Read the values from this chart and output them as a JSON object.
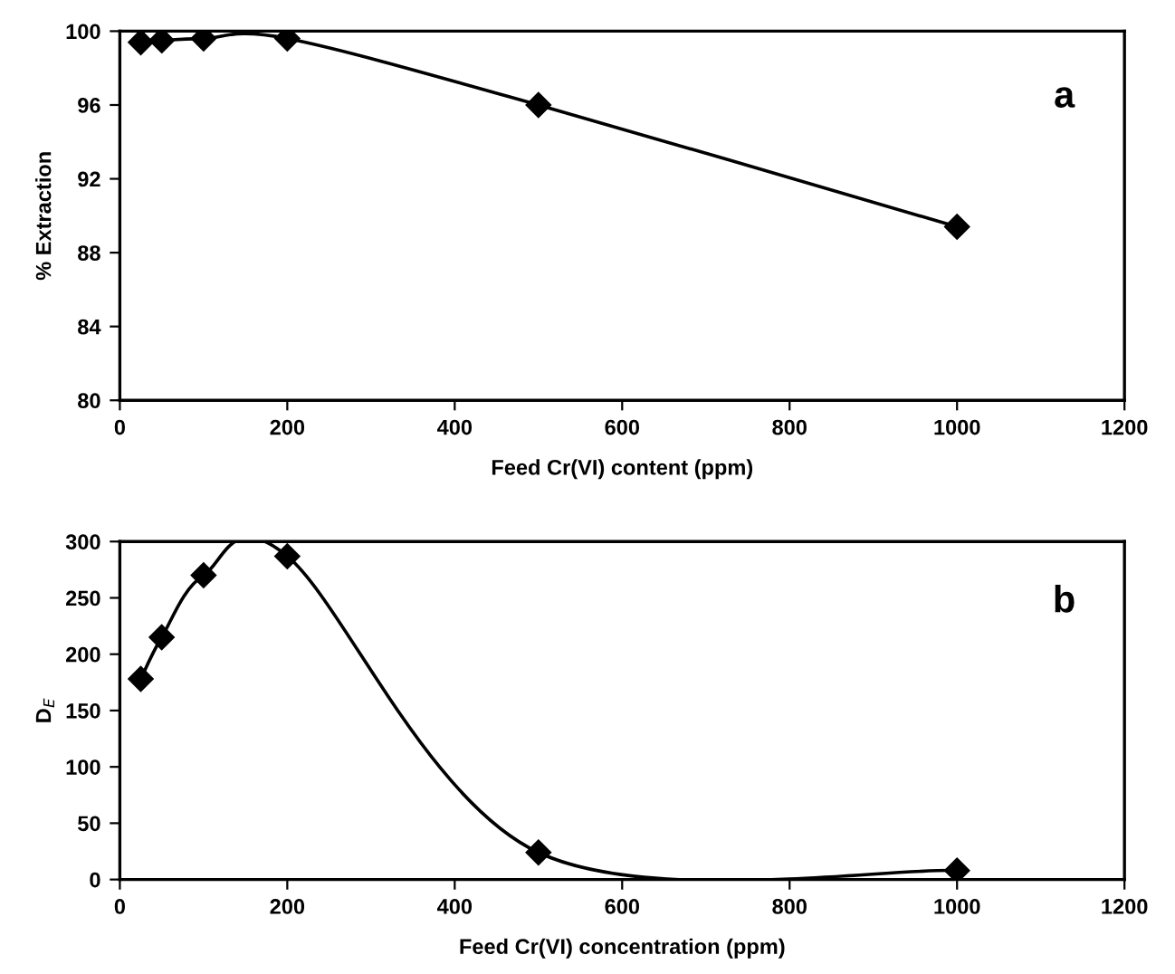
{
  "chart_data": [
    {
      "type": "line",
      "xlabel": "Feed Cr(VI) content (ppm)",
      "ylabel": "% Extraction",
      "annotations": [
        "a"
      ],
      "x": [
        25,
        50,
        100,
        200,
        500,
        1000
      ],
      "series": [
        {
          "color": "#000000",
          "values": [
            99.4,
            99.5,
            99.6,
            99.6,
            96.0,
            89.4
          ]
        }
      ],
      "xlim": [
        0,
        1200
      ],
      "xticks": [
        0,
        200,
        400,
        600,
        800,
        1000,
        1200
      ],
      "ylim": [
        80,
        100
      ],
      "yticks": [
        80,
        84,
        88,
        92,
        96,
        100
      ],
      "marker": "diamond",
      "line_style": "solid",
      "grid": false,
      "legend": false
    },
    {
      "type": "line",
      "xlabel": "Feed Cr(VI) concentration (ppm)",
      "ylabel": "D$_{E}$",
      "annotations": [
        "b"
      ],
      "x": [
        25,
        50,
        100,
        200,
        500,
        1000
      ],
      "series": [
        {
          "color": "#000000",
          "values": [
            178,
            215,
            270,
            287,
            24,
            8
          ]
        }
      ],
      "xlim": [
        0,
        1200
      ],
      "xticks": [
        0,
        200,
        400,
        600,
        800,
        1000,
        1200
      ],
      "ylim": [
        0,
        300
      ],
      "yticks": [
        0,
        50,
        100,
        150,
        200,
        250,
        300
      ],
      "marker": "diamond",
      "line_style": "solid",
      "grid": false,
      "legend": false
    }
  ]
}
